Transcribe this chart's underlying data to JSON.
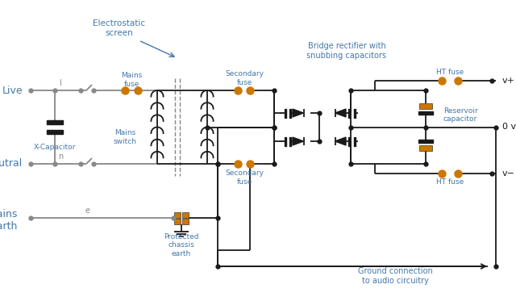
{
  "bg_color": "#ffffff",
  "line_color": "#1a1a1a",
  "gray_color": "#888888",
  "orange_color": "#CC7700",
  "blue_color": "#4477AA",
  "fig_width": 6.4,
  "fig_height": 3.68,
  "dpi": 100,
  "labels": {
    "live": "Live",
    "neutral": "Neutral",
    "mains_earth": "Mains\nearth",
    "electrostatic_screen": "Electrostatic\nscreen",
    "mains_fuse": "Mains\nfuse",
    "mains_switch": "Mains\nswitch",
    "x_capacitor": "X-Capacitor",
    "secondary_fuse_top": "Secondary\nfuse",
    "secondary_fuse_bot": "Secondary\nfuse",
    "bridge_rectifier": "Bridge rectifier with\nsnubbing capacitors",
    "ht_fuse_top": "HT fuse",
    "ht_fuse_bot": "HT fuse",
    "reservoir_capacitor": "Reservoir\ncapacitor",
    "vplus": "v+",
    "vminus": "v−",
    "zero_v": "0 v",
    "protected_chassis_earth": "Protected\nchassis\nearth",
    "ground_connection": "Ground connection\nto audio circuitry",
    "l_label": "l",
    "n_label": "n",
    "e_label": "e"
  }
}
